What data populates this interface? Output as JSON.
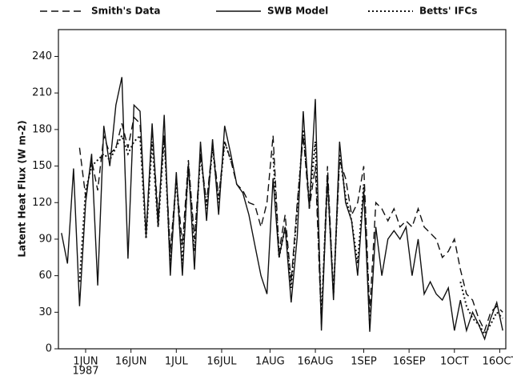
{
  "chart_data": {
    "type": "line",
    "ylabel": "Latent Heat Flux (W m-2)",
    "x_year": "1987",
    "x": [
      "1987-05-24",
      "1987-05-26",
      "1987-05-28",
      "1987-05-30",
      "1987-06-01",
      "1987-06-03",
      "1987-06-05",
      "1987-06-07",
      "1987-06-09",
      "1987-06-11",
      "1987-06-13",
      "1987-06-15",
      "1987-06-17",
      "1987-06-19",
      "1987-06-21",
      "1987-06-23",
      "1987-06-25",
      "1987-06-27",
      "1987-06-29",
      "1987-07-01",
      "1987-07-03",
      "1987-07-05",
      "1987-07-07",
      "1987-07-09",
      "1987-07-11",
      "1987-07-13",
      "1987-07-15",
      "1987-07-17",
      "1987-07-19",
      "1987-07-21",
      "1987-07-23",
      "1987-07-25",
      "1987-07-27",
      "1987-07-29",
      "1987-07-31",
      "1987-08-02",
      "1987-08-04",
      "1987-08-06",
      "1987-08-08",
      "1987-08-10",
      "1987-08-12",
      "1987-08-14",
      "1987-08-16",
      "1987-08-18",
      "1987-08-20",
      "1987-08-22",
      "1987-08-24",
      "1987-08-26",
      "1987-08-28",
      "1987-08-30",
      "1987-09-01",
      "1987-09-03",
      "1987-09-05",
      "1987-09-07",
      "1987-09-09",
      "1987-09-11",
      "1987-09-13",
      "1987-09-15",
      "1987-09-17",
      "1987-09-19",
      "1987-09-21",
      "1987-09-23",
      "1987-09-25",
      "1987-09-27",
      "1987-09-29",
      "1987-10-01",
      "1987-10-03",
      "1987-10-05",
      "1987-10-07",
      "1987-10-09",
      "1987-10-11",
      "1987-10-13",
      "1987-10-15",
      "1987-10-17"
    ],
    "xlim": [
      "1987-05-23",
      "1987-10-18"
    ],
    "xticks": [
      {
        "value": "1987-06-01",
        "label": "1JUN"
      },
      {
        "value": "1987-06-16",
        "label": "16JUN"
      },
      {
        "value": "1987-07-01",
        "label": "1JUL"
      },
      {
        "value": "1987-07-16",
        "label": "16JUL"
      },
      {
        "value": "1987-08-01",
        "label": "1AUG"
      },
      {
        "value": "1987-08-16",
        "label": "16AUG"
      },
      {
        "value": "1987-09-01",
        "label": "1SEP"
      },
      {
        "value": "1987-09-16",
        "label": "16SEP"
      },
      {
        "value": "1987-10-01",
        "label": "1OCT"
      },
      {
        "value": "1987-10-16",
        "label": "16OCT"
      }
    ],
    "ylim": [
      0,
      262
    ],
    "yticks": [
      0,
      30,
      60,
      90,
      120,
      150,
      180,
      210,
      240
    ],
    "series": [
      {
        "name": "Smith's Data",
        "color": "#111111",
        "dash": "dashed",
        "values": [
          null,
          null,
          null,
          165,
          125,
          155,
          130,
          175,
          160,
          165,
          185,
          165,
          190,
          185,
          95,
          180,
          110,
          175,
          80,
          140,
          85,
          155,
          90,
          160,
          120,
          168,
          125,
          170,
          155,
          135,
          130,
          120,
          118,
          100,
          120,
          175,
          80,
          110,
          55,
          120,
          175,
          115,
          150,
          20,
          150,
          45,
          155,
          140,
          110,
          120,
          150,
          30,
          120,
          115,
          105,
          115,
          100,
          105,
          100,
          115,
          100,
          95,
          90,
          75,
          80,
          90,
          65,
          45,
          40,
          25,
          15,
          30,
          35,
          30
        ]
      },
      {
        "name": "SWB Model",
        "color": "#111111",
        "dash": "solid",
        "values": [
          95,
          70,
          148,
          35,
          120,
          160,
          52,
          183,
          150,
          200,
          223,
          74,
          200,
          195,
          92,
          185,
          100,
          192,
          60,
          145,
          60,
          152,
          65,
          170,
          105,
          172,
          110,
          183,
          160,
          135,
          128,
          110,
          85,
          60,
          45,
          140,
          75,
          100,
          38,
          92,
          195,
          115,
          205,
          15,
          140,
          40,
          170,
          120,
          105,
          60,
          130,
          14,
          100,
          60,
          90,
          97,
          90,
          100,
          60,
          90,
          45,
          55,
          45,
          40,
          50,
          15,
          40,
          15,
          30,
          20,
          8,
          25,
          38,
          15
        ]
      },
      {
        "name": "Betts' IFCs",
        "color": "#111111",
        "dash": "dotted",
        "values": [
          null,
          null,
          null,
          55,
          130,
          150,
          155,
          160,
          155,
          165,
          175,
          160,
          170,
          175,
          90,
          170,
          100,
          175,
          70,
          140,
          70,
          150,
          80,
          160,
          115,
          165,
          120,
          170,
          155,
          null,
          null,
          null,
          null,
          null,
          null,
          160,
          75,
          100,
          50,
          115,
          180,
          120,
          170,
          25,
          140,
          45,
          160,
          125,
          105,
          70,
          135,
          20,
          null,
          null,
          null,
          null,
          null,
          null,
          null,
          null,
          null,
          null,
          null,
          null,
          null,
          null,
          55,
          35,
          25,
          20,
          12,
          20,
          30,
          25
        ]
      }
    ]
  }
}
